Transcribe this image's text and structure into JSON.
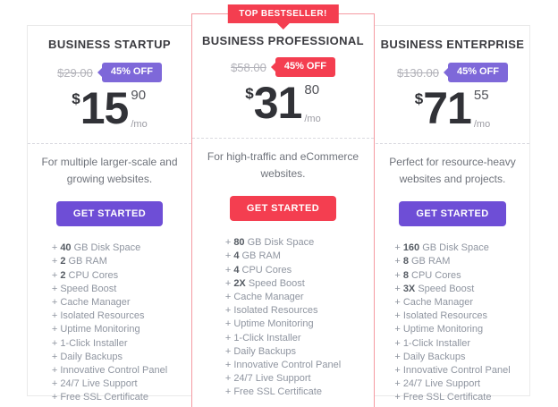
{
  "colors": {
    "accent_red": "#f43e50",
    "featured_card_border": "#f59aa2",
    "accent_purple_badge": "#7e68d9",
    "accent_purple_button": "#6e4ed6",
    "panel_border": "#eaeaea"
  },
  "feature_prefix": "+",
  "plans": [
    {
      "title": "BUSINESS STARTUP",
      "old_price": "$29.00",
      "discount": "45% OFF",
      "currency": "$",
      "price_int": "15",
      "price_cents": "90",
      "per": "/mo",
      "description": "For multiple larger-scale and growing websites.",
      "cta": "GET STARTED",
      "features": [
        {
          "bold": "40",
          "text": "GB Disk Space"
        },
        {
          "bold": "2",
          "text": "GB RAM"
        },
        {
          "bold": "2",
          "text": "CPU Cores"
        },
        {
          "bold": "",
          "text": "Speed Boost"
        },
        {
          "bold": "",
          "text": "Cache Manager"
        },
        {
          "bold": "",
          "text": "Isolated Resources"
        },
        {
          "bold": "",
          "text": "Uptime Monitoring"
        },
        {
          "bold": "",
          "text": "1-Click Installer"
        },
        {
          "bold": "",
          "text": "Daily Backups"
        },
        {
          "bold": "",
          "text": "Innovative Control Panel"
        },
        {
          "bold": "",
          "text": "24/7 Live Support"
        },
        {
          "bold": "",
          "text": "Free SSL Certificate"
        }
      ]
    },
    {
      "ribbon": "TOP BESTSELLER!",
      "title": "BUSINESS PROFESSIONAL",
      "old_price": "$58.00",
      "discount": "45% OFF",
      "currency": "$",
      "price_int": "31",
      "price_cents": "80",
      "per": "/mo",
      "description": "For high-traffic and eCommerce websites.",
      "cta": "GET STARTED",
      "features": [
        {
          "bold": "80",
          "text": "GB Disk Space"
        },
        {
          "bold": "4",
          "text": "GB RAM"
        },
        {
          "bold": "4",
          "text": "CPU Cores"
        },
        {
          "bold": "2X",
          "text": "Speed Boost"
        },
        {
          "bold": "",
          "text": "Cache Manager"
        },
        {
          "bold": "",
          "text": "Isolated Resources"
        },
        {
          "bold": "",
          "text": "Uptime Monitoring"
        },
        {
          "bold": "",
          "text": "1-Click Installer"
        },
        {
          "bold": "",
          "text": "Daily Backups"
        },
        {
          "bold": "",
          "text": "Innovative Control Panel"
        },
        {
          "bold": "",
          "text": "24/7 Live Support"
        },
        {
          "bold": "",
          "text": "Free SSL Certificate"
        }
      ]
    },
    {
      "title": "BUSINESS ENTERPRISE",
      "old_price": "$130.00",
      "discount": "45% OFF",
      "currency": "$",
      "price_int": "71",
      "price_cents": "55",
      "per": "/mo",
      "description": "Perfect for resource-heavy websites and projects.",
      "cta": "GET STARTED",
      "features": [
        {
          "bold": "160",
          "text": "GB Disk Space"
        },
        {
          "bold": "8",
          "text": "GB RAM"
        },
        {
          "bold": "8",
          "text": "CPU Cores"
        },
        {
          "bold": "3X",
          "text": "Speed Boost"
        },
        {
          "bold": "",
          "text": "Cache Manager"
        },
        {
          "bold": "",
          "text": "Isolated Resources"
        },
        {
          "bold": "",
          "text": "Uptime Monitoring"
        },
        {
          "bold": "",
          "text": "1-Click Installer"
        },
        {
          "bold": "",
          "text": "Daily Backups"
        },
        {
          "bold": "",
          "text": "Innovative Control Panel"
        },
        {
          "bold": "",
          "text": "24/7 Live Support"
        },
        {
          "bold": "",
          "text": "Free SSL Certificate"
        }
      ]
    }
  ]
}
